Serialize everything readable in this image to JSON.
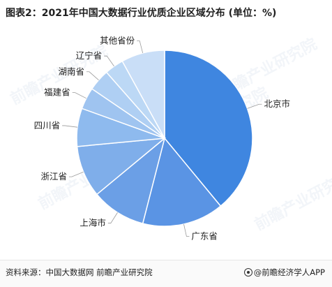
{
  "title": "图表2：2021年中国大数据行业优质企业区域分布 (单位：%)",
  "source": "资料来源：中国大数据网 前瞻产业研究院",
  "brand": "@前瞻经济学人APP",
  "watermark": "前瞻产业研究院",
  "chart_data": {
    "type": "pie",
    "title": "图表2：2021年中国大数据行业优质企业区域分布 (单位：%)",
    "categories": [
      "北京市",
      "广东省",
      "上海市",
      "浙江省",
      "四川省",
      "福建省",
      "湖南省",
      "辽宁省",
      "其他省份"
    ],
    "values": [
      39,
      15,
      10,
      9.5,
      7,
      4,
      4,
      3.5,
      8
    ],
    "colors": [
      "#3f86e0",
      "#5a94e4",
      "#6b9fe6",
      "#7faeea",
      "#8ebaee",
      "#9fc4f0",
      "#afcff3",
      "#bcd8f5",
      "#c9def7"
    ],
    "start_angle_deg": 0,
    "direction": "clockwise"
  }
}
